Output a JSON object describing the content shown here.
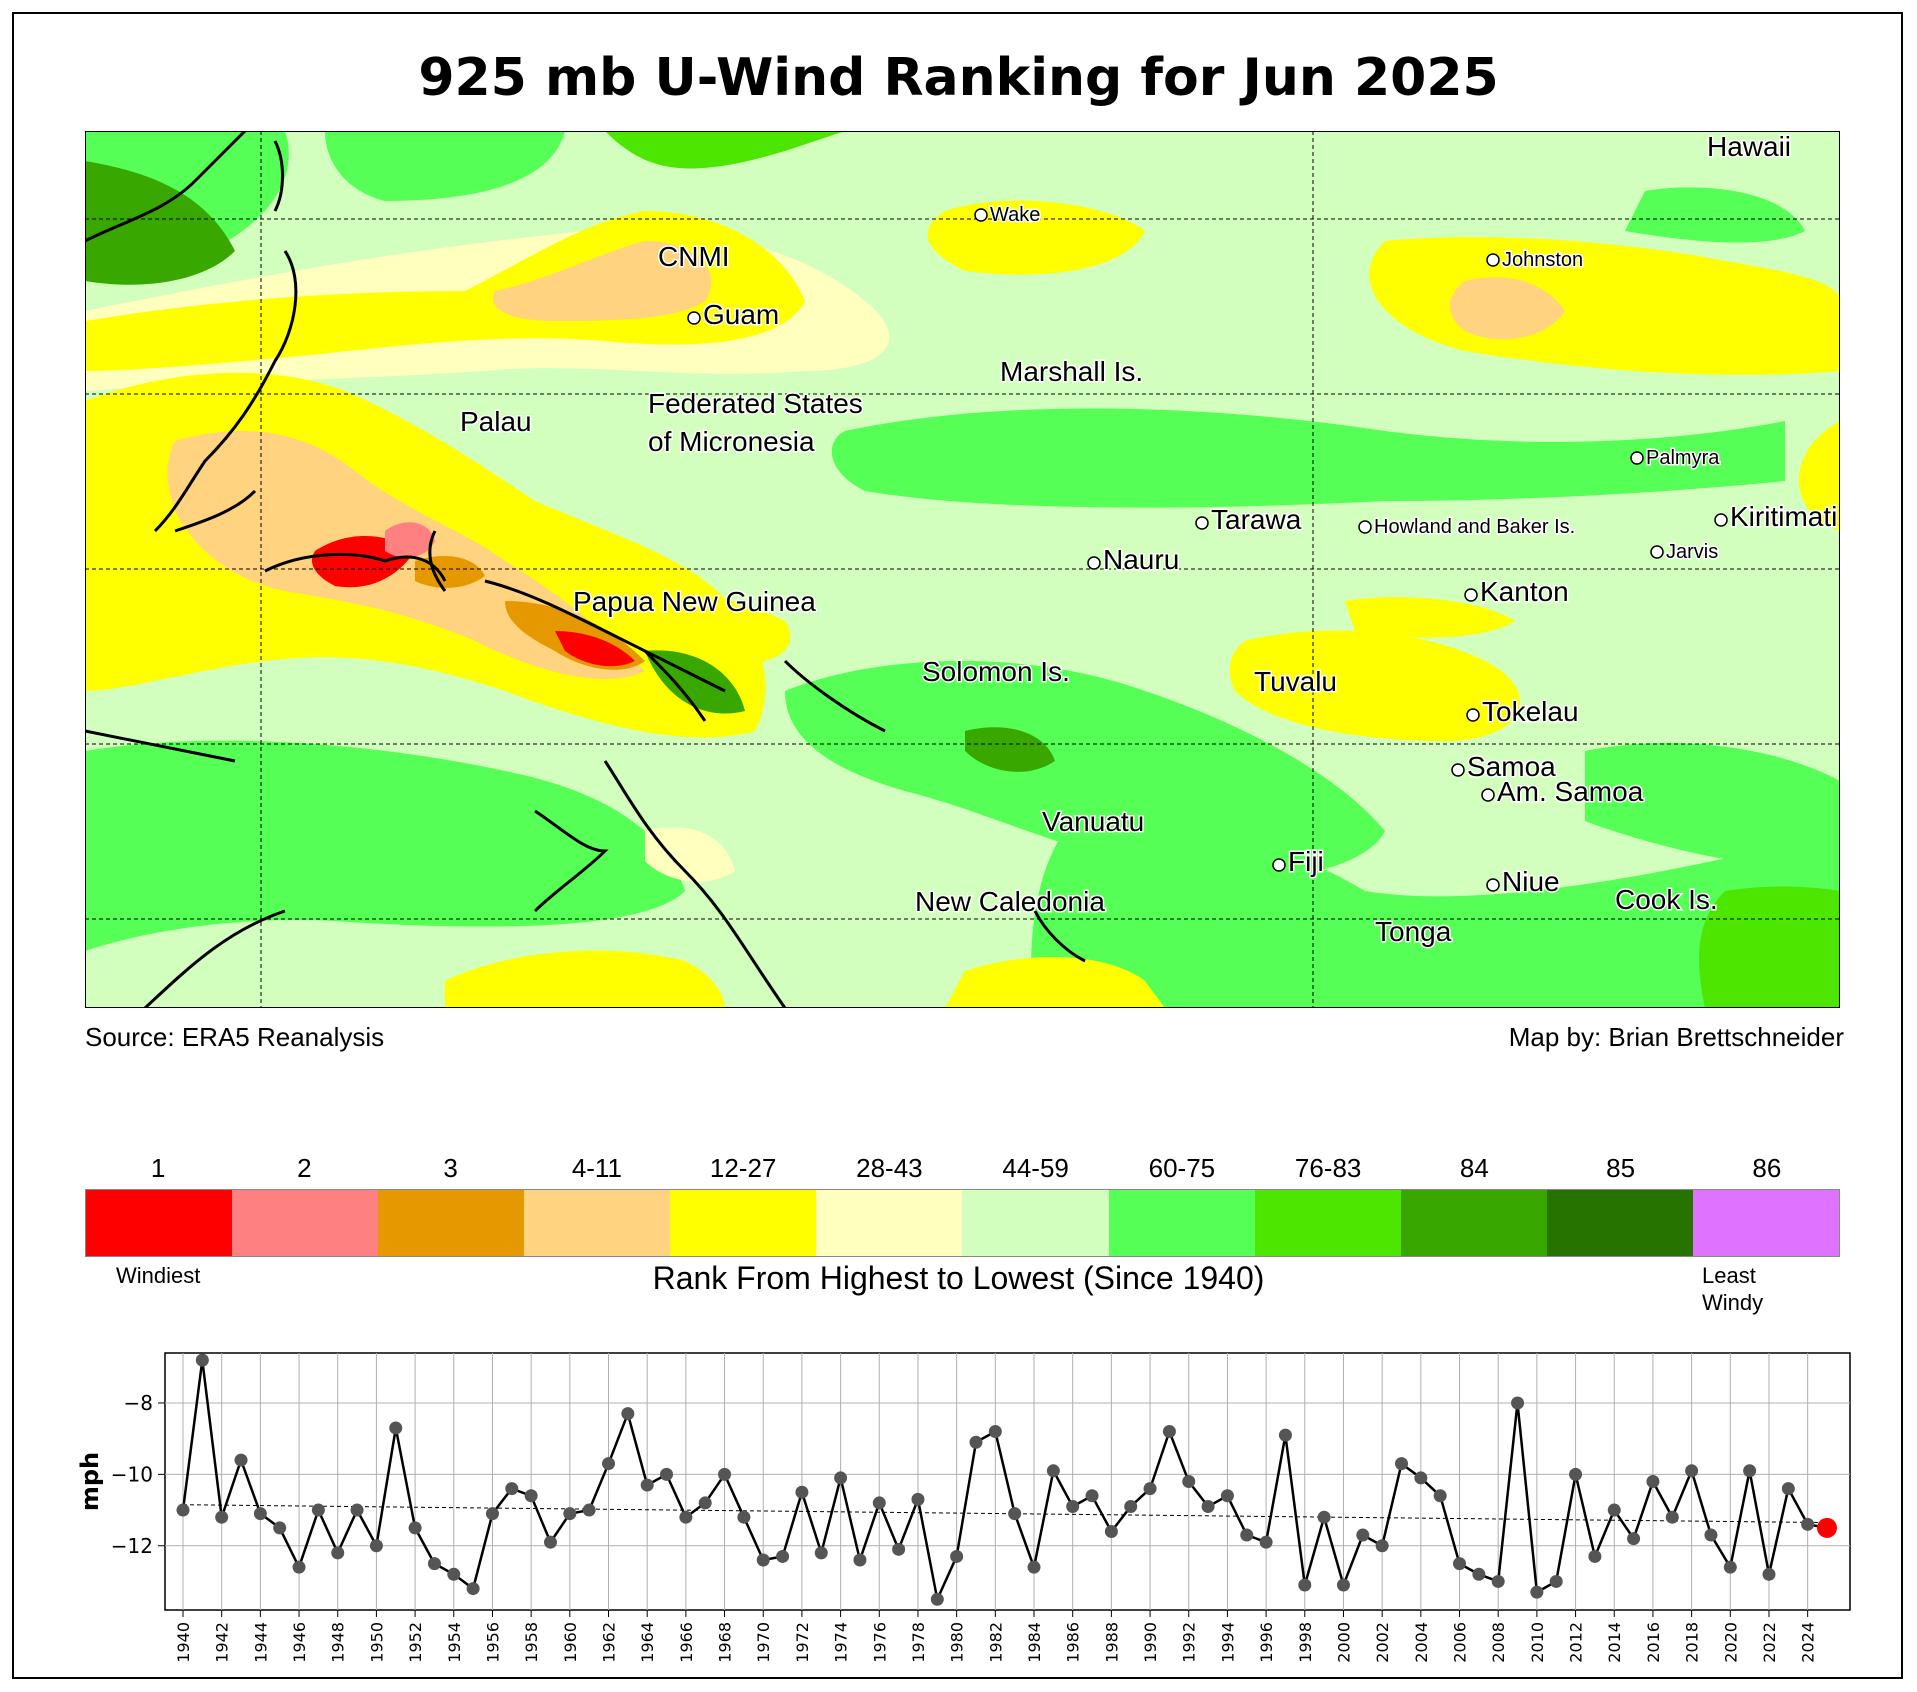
{
  "title": "925 mb U-Wind Ranking for Jun 2025",
  "source": "Source: ERA5 Reanalysis",
  "credit": "Map by: Brian Brettschneider",
  "map_labels": [
    {
      "name": "Hawaii",
      "size": "large",
      "marker": false
    },
    {
      "name": "Wake",
      "size": "small",
      "marker": true
    },
    {
      "name": "Johnston",
      "size": "small",
      "marker": true
    },
    {
      "name": "CNMI",
      "size": "large",
      "marker": false
    },
    {
      "name": "Guam",
      "size": "large",
      "marker": true
    },
    {
      "name": "Marshall Is.",
      "size": "large",
      "marker": false
    },
    {
      "name": "Federated States",
      "size": "large",
      "marker": false
    },
    {
      "name": "of Micronesia",
      "size": "large",
      "marker": false
    },
    {
      "name": "Palau",
      "size": "large",
      "marker": false
    },
    {
      "name": "Palmyra",
      "size": "small",
      "marker": true
    },
    {
      "name": "Kiritimati",
      "size": "large",
      "marker": true
    },
    {
      "name": "Tarawa",
      "size": "large",
      "marker": true
    },
    {
      "name": "Howland and Baker Is.",
      "size": "small",
      "marker": true
    },
    {
      "name": "Jarvis",
      "size": "small",
      "marker": true
    },
    {
      "name": "Nauru",
      "size": "large",
      "marker": true
    },
    {
      "name": "Kanton",
      "size": "large",
      "marker": true
    },
    {
      "name": "Papua New Guinea",
      "size": "large",
      "marker": false
    },
    {
      "name": "Solomon Is.",
      "size": "large",
      "marker": false
    },
    {
      "name": "Tuvalu",
      "size": "large",
      "marker": false
    },
    {
      "name": "Tokelau",
      "size": "large",
      "marker": true
    },
    {
      "name": "Samoa",
      "size": "large",
      "marker": true
    },
    {
      "name": "Am. Samoa",
      "size": "large",
      "marker": true
    },
    {
      "name": "Vanuatu",
      "size": "large",
      "marker": false
    },
    {
      "name": "Fiji",
      "size": "large",
      "marker": true
    },
    {
      "name": "Niue",
      "size": "large",
      "marker": true
    },
    {
      "name": "Cook Is.",
      "size": "large",
      "marker": false
    },
    {
      "name": "New Caledonia",
      "size": "large",
      "marker": false
    },
    {
      "name": "Tonga",
      "size": "large",
      "marker": false
    }
  ],
  "legend": {
    "classes": [
      {
        "label": "1",
        "color": "#ff0000"
      },
      {
        "label": "2",
        "color": "#ff8080"
      },
      {
        "label": "3",
        "color": "#e69800"
      },
      {
        "label": "4-11",
        "color": "#ffd37f"
      },
      {
        "label": "12-27",
        "color": "#ffff00"
      },
      {
        "label": "28-43",
        "color": "#ffffbe"
      },
      {
        "label": "44-59",
        "color": "#d3ffbe"
      },
      {
        "label": "60-75",
        "color": "#55ff55"
      },
      {
        "label": "76-83",
        "color": "#4ce600"
      },
      {
        "label": "84",
        "color": "#38a800"
      },
      {
        "label": "85",
        "color": "#267300"
      },
      {
        "label": "86",
        "color": "#df73ff"
      }
    ],
    "low_end": "Windiest",
    "high_end_1": "Least",
    "high_end_2": "Windy",
    "title": "Rank From Highest to Lowest (Since 1940)"
  },
  "chart_data": {
    "type": "line",
    "ylabel": "mph",
    "x": [
      1940,
      1941,
      1942,
      1943,
      1944,
      1945,
      1946,
      1947,
      1948,
      1949,
      1950,
      1951,
      1952,
      1953,
      1954,
      1955,
      1956,
      1957,
      1958,
      1959,
      1960,
      1961,
      1962,
      1963,
      1964,
      1965,
      1966,
      1967,
      1968,
      1969,
      1970,
      1971,
      1972,
      1973,
      1974,
      1975,
      1976,
      1977,
      1978,
      1979,
      1980,
      1981,
      1982,
      1983,
      1984,
      1985,
      1986,
      1987,
      1988,
      1989,
      1990,
      1991,
      1992,
      1993,
      1994,
      1995,
      1996,
      1997,
      1998,
      1999,
      2000,
      2001,
      2002,
      2003,
      2004,
      2005,
      2006,
      2007,
      2008,
      2009,
      2010,
      2011,
      2012,
      2013,
      2014,
      2015,
      2016,
      2017,
      2018,
      2019,
      2020,
      2021,
      2022,
      2023,
      2024,
      2025
    ],
    "values": [
      -11.0,
      -6.8,
      -11.2,
      -9.6,
      -11.1,
      -11.5,
      -12.6,
      -11.0,
      -12.2,
      -11.0,
      -12.0,
      -8.7,
      -11.5,
      -12.5,
      -12.8,
      -13.2,
      -11.1,
      -10.4,
      -10.6,
      -11.9,
      -11.1,
      -11.0,
      -9.7,
      -8.3,
      -10.3,
      -10.0,
      -11.2,
      -10.8,
      -10.0,
      -11.2,
      -12.4,
      -12.3,
      -10.5,
      -12.2,
      -10.1,
      -12.4,
      -10.8,
      -12.1,
      -10.7,
      -13.5,
      -12.3,
      -9.1,
      -8.8,
      -11.1,
      -12.6,
      -9.9,
      -10.9,
      -10.6,
      -11.6,
      -10.9,
      -10.4,
      -8.8,
      -10.2,
      -10.9,
      -10.6,
      -11.7,
      -11.9,
      -8.9,
      -13.1,
      -11.2,
      -13.1,
      -11.7,
      -12.0,
      -9.7,
      -10.1,
      -10.6,
      -12.5,
      -12.8,
      -13.0,
      -8.0,
      -13.3,
      -13.0,
      -10.0,
      -12.3,
      -11.0,
      -11.8,
      -10.2,
      -11.2,
      -9.9,
      -11.7,
      -12.6,
      -9.9,
      -12.8,
      -10.4,
      -11.4,
      -11.5
    ],
    "trend": [
      -10.85,
      -11.35
    ],
    "highlight_year": 2025,
    "ylim": [
      -13.8,
      -6.6
    ],
    "yticks": [
      -8,
      -10,
      -12
    ],
    "xtick_step": 2,
    "grid": true,
    "colors": {
      "line": "#000000",
      "marker": "#555555",
      "highlight": "#ff0000"
    }
  }
}
